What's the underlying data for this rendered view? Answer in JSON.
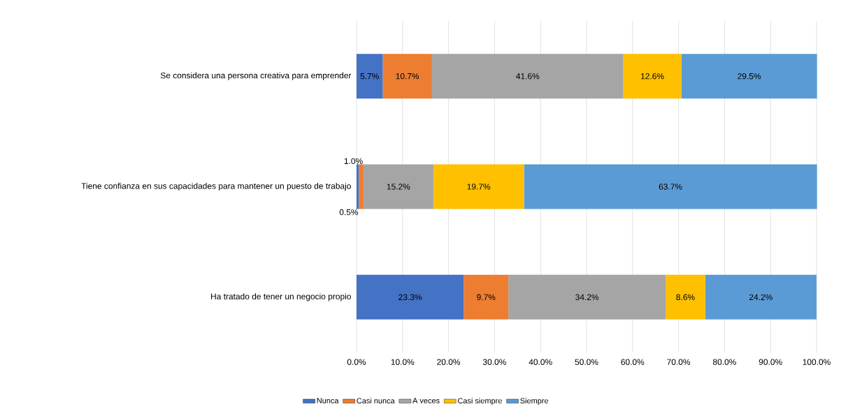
{
  "chart_data": {
    "type": "bar",
    "orientation": "horizontal",
    "stacked": true,
    "categories": [
      "Se considera una persona creativa para emprender",
      "Tiene confianza en sus capacidades para mantener un puesto de trabajo",
      "Ha tratado de tener un negocio propio"
    ],
    "series": [
      {
        "name": "Nunca",
        "color": "#4472c4",
        "values": [
          5.7,
          0.5,
          23.3
        ],
        "value_labels": [
          "5.7%",
          "0.5%",
          "23.3%"
        ]
      },
      {
        "name": "Casi nunca",
        "color": "#ed7d31",
        "values": [
          10.7,
          1.0,
          9.7
        ],
        "value_labels": [
          "10.7%",
          "1.0%",
          "9.7%"
        ]
      },
      {
        "name": "A veces",
        "color": "#a5a5a5",
        "values": [
          41.6,
          15.2,
          34.2
        ],
        "value_labels": [
          "41.6%",
          "15.2%",
          "34.2%"
        ]
      },
      {
        "name": "Casi siempre",
        "color": "#ffc000",
        "values": [
          12.6,
          19.7,
          8.6
        ],
        "value_labels": [
          "12.6%",
          "19.7%",
          "8.6%"
        ]
      },
      {
        "name": "Siempre",
        "color": "#5b9bd5",
        "values": [
          29.5,
          63.7,
          24.2
        ],
        "value_labels": [
          "29.5%",
          "63.7%",
          "24.2%"
        ]
      }
    ],
    "xlim": [
      0,
      100
    ],
    "xticks": [
      {
        "value": 0,
        "label": "0.0%"
      },
      {
        "value": 10,
        "label": "10.0%"
      },
      {
        "value": 20,
        "label": "20.0%"
      },
      {
        "value": 30,
        "label": "30.0%"
      },
      {
        "value": 40,
        "label": "40.0%"
      },
      {
        "value": 50,
        "label": "50.0%"
      },
      {
        "value": 60,
        "label": "60.0%"
      },
      {
        "value": 70,
        "label": "70.0%"
      },
      {
        "value": 80,
        "label": "80.0%"
      },
      {
        "value": 90,
        "label": "90.0%"
      },
      {
        "value": 100,
        "label": "100.0%"
      }
    ],
    "grid": "x",
    "legend": "bottom"
  }
}
